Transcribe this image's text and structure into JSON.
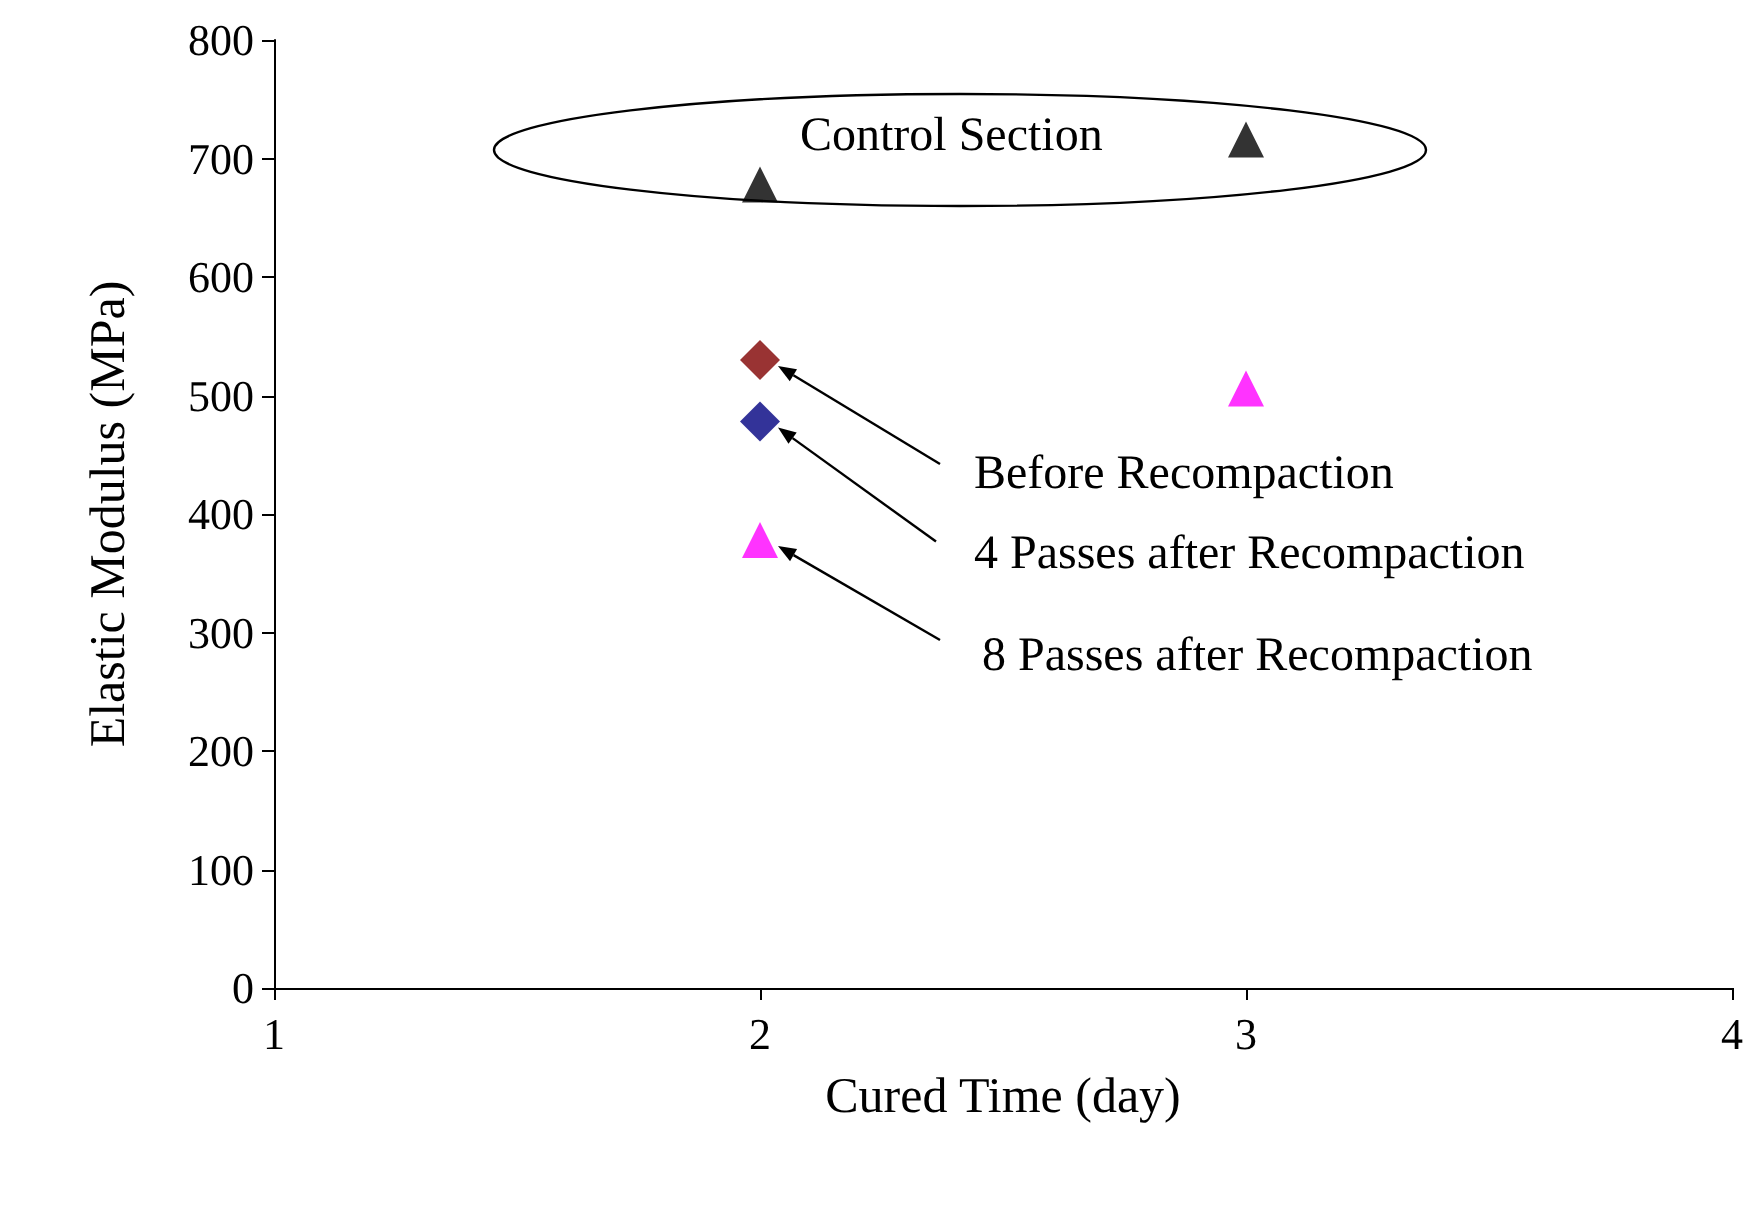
{
  "chart_data": {
    "type": "scatter",
    "xlabel": "Cured Time (day)",
    "ylabel": "Elastic Modulus (MPa)",
    "xlim": [
      1,
      4
    ],
    "xticks": [
      1,
      2,
      3,
      4
    ],
    "ylim": [
      0,
      800
    ],
    "yticks": [
      0,
      100,
      200,
      300,
      400,
      500,
      600,
      700,
      800
    ],
    "grid": false,
    "x": [
      2,
      3
    ],
    "annotations": [
      "Control Section",
      "Before Recompaction",
      "4 Passes after Recompaction",
      "8 Passes after Recompaction"
    ],
    "series": [
      {
        "color": "#000000",
        "marker": "triangle",
        "values": [
          678,
          716
        ]
      },
      {
        "color": "#7f0000",
        "marker": "diamond",
        "values": [
          530,
          null
        ]
      },
      {
        "color": "#000080",
        "marker": "diamond",
        "values": [
          478,
          null
        ]
      },
      {
        "color": "#ff00ff",
        "marker": "triangle",
        "values": [
          378,
          506
        ]
      }
    ]
  }
}
